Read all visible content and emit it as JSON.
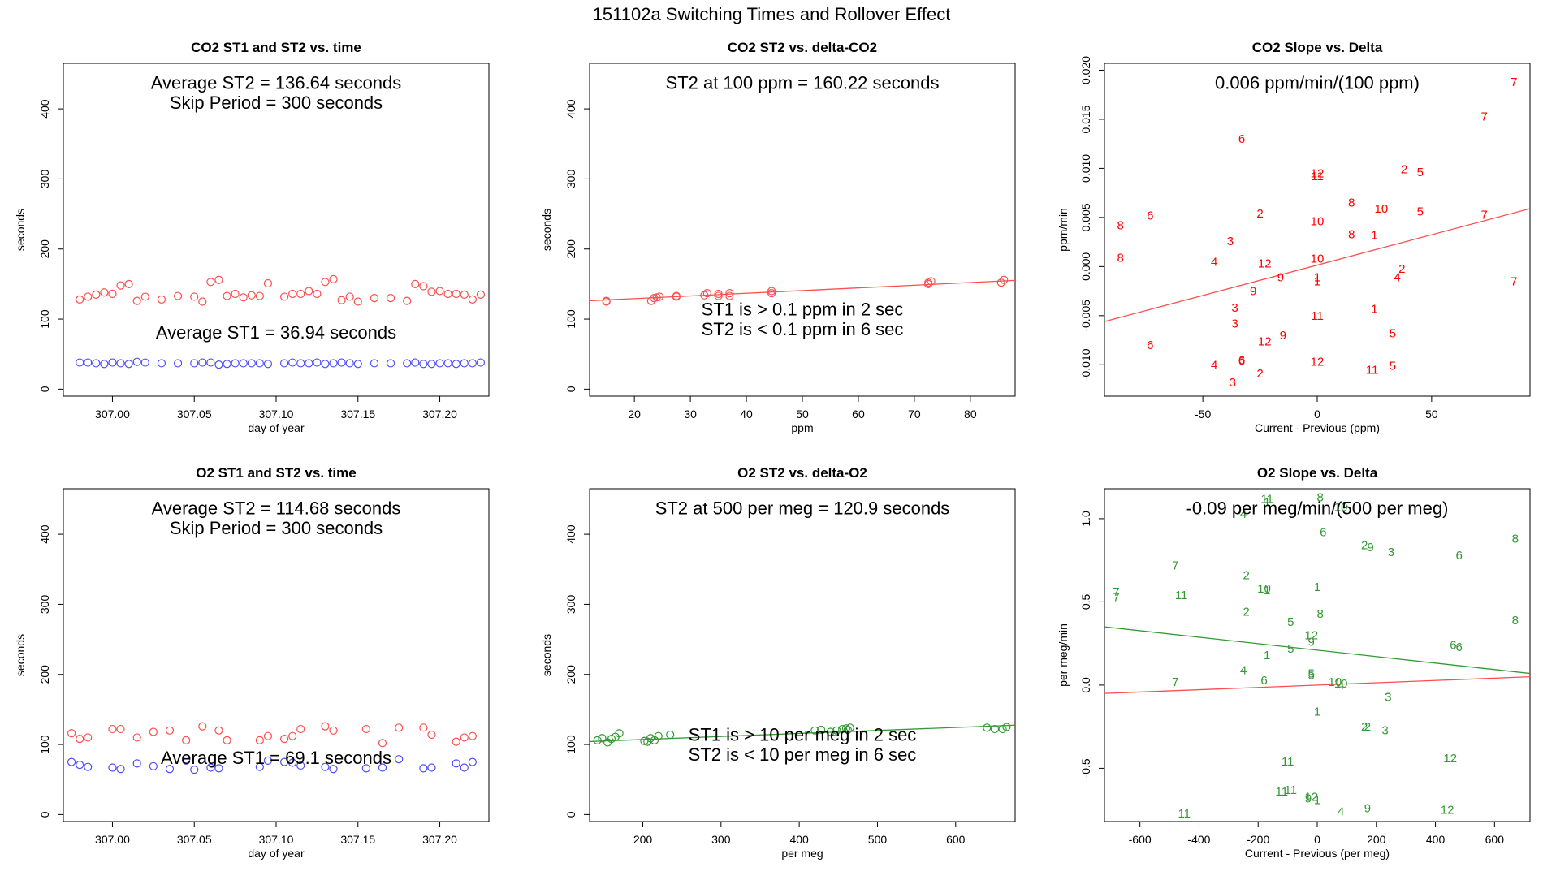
{
  "figure_title": "151102a   Switching Times and Rollover Effect",
  "chart_data": [
    {
      "type": "scatter",
      "title": "CO2 ST1 and ST2 vs. time",
      "xlabel": "day of year",
      "ylabel": "seconds",
      "xlim": [
        306.97,
        307.23
      ],
      "ylim": [
        -10,
        465
      ],
      "xticks": [
        307.0,
        307.05,
        307.1,
        307.15,
        307.2
      ],
      "xtick_labels": [
        "307.00",
        "307.05",
        "307.10",
        "307.15",
        "307.20"
      ],
      "yticks": [
        0,
        100,
        200,
        300,
        400
      ],
      "ytick_labels": [
        "0",
        "100",
        "200",
        "300",
        "400"
      ],
      "annotations": [
        "Average ST2 =  136.64  seconds",
        "Skip Period =  300  seconds",
        "Average ST1 =  36.94  seconds"
      ],
      "colors": {
        "st2": "#ff4d4d",
        "st1": "#4d4dff"
      },
      "series": [
        {
          "key": "st2",
          "x": [
            306.98,
            306.985,
            306.99,
            306.995,
            307.0,
            307.005,
            307.01,
            307.015,
            307.02,
            307.03,
            307.04,
            307.05,
            307.055,
            307.06,
            307.065,
            307.07,
            307.075,
            307.08,
            307.085,
            307.09,
            307.095,
            307.105,
            307.11,
            307.115,
            307.12,
            307.125,
            307.13,
            307.135,
            307.14,
            307.145,
            307.15,
            307.16,
            307.17,
            307.18,
            307.185,
            307.19,
            307.195,
            307.2,
            307.205,
            307.21,
            307.215,
            307.22,
            307.225
          ],
          "y": [
            128,
            132,
            135,
            138,
            136,
            148,
            150,
            126,
            132,
            128,
            133,
            132,
            125,
            153,
            156,
            133,
            136,
            131,
            134,
            133,
            151,
            132,
            136,
            136,
            140,
            136,
            153,
            157,
            127,
            132,
            125,
            130,
            130,
            126,
            150,
            147,
            139,
            140,
            136,
            136,
            135,
            128,
            135
          ]
        },
        {
          "key": "st1",
          "x": [
            306.98,
            306.985,
            306.99,
            306.995,
            307.0,
            307.005,
            307.01,
            307.015,
            307.02,
            307.03,
            307.04,
            307.05,
            307.055,
            307.06,
            307.065,
            307.07,
            307.075,
            307.08,
            307.085,
            307.09,
            307.095,
            307.105,
            307.11,
            307.115,
            307.12,
            307.125,
            307.13,
            307.135,
            307.14,
            307.145,
            307.15,
            307.16,
            307.17,
            307.18,
            307.185,
            307.19,
            307.195,
            307.2,
            307.205,
            307.21,
            307.215,
            307.22,
            307.225
          ],
          "y": [
            38,
            38,
            37,
            36,
            38,
            37,
            36,
            39,
            38,
            37,
            37,
            37,
            38,
            38,
            35,
            36,
            37,
            37,
            37,
            37,
            36,
            37,
            38,
            37,
            37,
            38,
            36,
            37,
            38,
            37,
            36,
            37,
            37,
            37,
            38,
            36,
            36,
            37,
            37,
            36,
            37,
            37,
            38
          ]
        }
      ]
    },
    {
      "type": "scatter",
      "title": "CO2 ST2 vs. delta-CO2",
      "xlabel": "ppm",
      "ylabel": "seconds",
      "xlim": [
        12,
        88
      ],
      "ylim": [
        -10,
        465
      ],
      "xticks": [
        20,
        30,
        40,
        50,
        60,
        70,
        80
      ],
      "xtick_labels": [
        "20",
        "30",
        "40",
        "50",
        "60",
        "70",
        "80"
      ],
      "yticks": [
        0,
        100,
        200,
        300,
        400
      ],
      "ytick_labels": [
        "0",
        "100",
        "200",
        "300",
        "400"
      ],
      "annotations": [
        "ST2 at 100 ppm =  160.22  seconds",
        "ST1 is > 0.1 ppm in 2 sec",
        "ST2 is < 0.1 ppm in 6 sec"
      ],
      "colors": {
        "points": "#ff4d4d",
        "line": "#ff4d4d"
      },
      "x": [
        15,
        15,
        23,
        23.5,
        24,
        24.5,
        27.5,
        27.5,
        32.5,
        33,
        35,
        35,
        37,
        37,
        44.5,
        44.5,
        72.5,
        72.5,
        73,
        85.5,
        86
      ],
      "y": [
        125,
        126,
        126,
        130,
        131,
        132,
        132,
        133,
        134,
        137,
        133,
        136,
        133,
        137,
        137,
        140,
        150,
        152,
        154,
        152,
        156
      ],
      "fit_line": {
        "x": [
          12,
          88
        ],
        "y": [
          126.2,
          155.2
        ]
      }
    },
    {
      "type": "scatter",
      "title": "CO2 Slope vs. Delta",
      "xlabel": "Current - Previous (ppm)",
      "ylabel": "ppm/min",
      "xlim": [
        -93,
        93
      ],
      "ylim": [
        -0.0132,
        0.0207
      ],
      "xticks": [
        -50,
        0,
        50
      ],
      "xtick_labels": [
        "-50",
        "0",
        "50"
      ],
      "yticks": [
        -0.01,
        -0.005,
        0.0,
        0.005,
        0.01,
        0.015,
        0.02
      ],
      "ytick_labels": [
        "-0.010",
        "-0.005",
        "0.000",
        "0.005",
        "0.010",
        "0.015",
        "0.020"
      ],
      "annotations": [
        "0.006  ppm/min/(100 ppm)"
      ],
      "colors": {
        "points": "#ff0000",
        "line": "#ff4d4d"
      },
      "point_labels": [
        "8",
        "8",
        "6",
        "6",
        "6",
        "6",
        "6",
        "3",
        "3",
        "3",
        "3",
        "4",
        "4",
        "12",
        "12",
        "9",
        "9",
        "9",
        "2",
        "2",
        "10",
        "10",
        "1",
        "1",
        "11",
        "11",
        "12",
        "8",
        "8",
        "1",
        "12",
        "10",
        "1",
        "11",
        "4",
        "2",
        "2",
        "5",
        "5",
        "5",
        "5",
        "7",
        "7",
        "7",
        "7"
      ],
      "x": [
        -86,
        -86,
        -73,
        -73,
        -33,
        -33,
        -33,
        -38,
        -36,
        -37,
        -36,
        -45,
        -45,
        -23,
        -23,
        -28,
        -16,
        -15,
        -25,
        -25,
        0,
        0,
        0,
        0,
        0,
        0,
        0,
        15,
        15,
        25,
        0,
        28,
        25,
        24,
        35,
        38,
        37,
        45,
        45,
        33,
        33,
        73,
        73,
        86,
        86
      ],
      "y": [
        0.0042,
        0.0009,
        0.0052,
        -0.008,
        0.013,
        -0.0096,
        -0.0095,
        0.0026,
        -0.0042,
        -0.0118,
        -0.0058,
        -0.01,
        0.0005,
        0.0003,
        -0.0076,
        -0.0025,
        -0.0011,
        -0.007,
        -0.0109,
        0.0054,
        0.0046,
        0.0008,
        -0.0011,
        -0.0015,
        -0.005,
        0.0092,
        0.0095,
        0.0065,
        0.0033,
        -0.0043,
        -0.0097,
        0.0059,
        0.0032,
        -0.0105,
        -0.0011,
        0.0099,
        -0.0002,
        0.0096,
        0.0056,
        -0.0068,
        -0.0101,
        0.0153,
        0.0053,
        0.0188,
        -0.0015
      ],
      "fit_line": {
        "x": [
          -93,
          93
        ],
        "y": [
          -0.0056,
          0.0059
        ]
      }
    },
    {
      "type": "scatter",
      "title": "O2 ST1 and ST2 vs. time",
      "xlabel": "day of year",
      "ylabel": "seconds",
      "xlim": [
        306.97,
        307.23
      ],
      "ylim": [
        -10,
        465
      ],
      "xticks": [
        307.0,
        307.05,
        307.1,
        307.15,
        307.2
      ],
      "xtick_labels": [
        "307.00",
        "307.05",
        "307.10",
        "307.15",
        "307.20"
      ],
      "yticks": [
        0,
        100,
        200,
        300,
        400
      ],
      "ytick_labels": [
        "0",
        "100",
        "200",
        "300",
        "400"
      ],
      "annotations": [
        "Average ST2 =  114.68  seconds",
        "Skip Period =  300  seconds",
        "Average ST1 =  69.1  seconds"
      ],
      "colors": {
        "st2": "#ff4d4d",
        "st1": "#4d4dff"
      },
      "series": [
        {
          "key": "st2",
          "x": [
            306.975,
            306.98,
            306.985,
            307.0,
            307.005,
            307.015,
            307.025,
            307.035,
            307.045,
            307.055,
            307.065,
            307.07,
            307.09,
            307.095,
            307.105,
            307.11,
            307.115,
            307.13,
            307.135,
            307.155,
            307.165,
            307.175,
            307.19,
            307.195,
            307.21,
            307.215,
            307.22
          ],
          "y": [
            116,
            108,
            110,
            122,
            122,
            110,
            118,
            120,
            106,
            126,
            120,
            106,
            106,
            112,
            108,
            112,
            122,
            126,
            120,
            122,
            102,
            124,
            124,
            114,
            104,
            110,
            112
          ]
        },
        {
          "key": "st1",
          "x": [
            306.975,
            306.98,
            306.985,
            307.0,
            307.005,
            307.015,
            307.025,
            307.035,
            307.045,
            307.05,
            307.06,
            307.065,
            307.09,
            307.095,
            307.105,
            307.11,
            307.115,
            307.13,
            307.135,
            307.155,
            307.165,
            307.175,
            307.19,
            307.195,
            307.21,
            307.215,
            307.22
          ],
          "y": [
            75,
            71,
            68,
            67,
            65,
            73,
            69,
            65,
            77,
            64,
            67,
            66,
            68,
            77,
            75,
            74,
            70,
            68,
            65,
            66,
            67,
            79,
            66,
            67,
            73,
            67,
            75
          ]
        }
      ]
    },
    {
      "type": "scatter",
      "title": "O2 ST2 vs. delta-O2",
      "xlabel": "per meg",
      "ylabel": "seconds",
      "xlim": [
        132,
        676
      ],
      "ylim": [
        -10,
        465
      ],
      "xticks": [
        200,
        300,
        400,
        500,
        600
      ],
      "xtick_labels": [
        "200",
        "300",
        "400",
        "500",
        "600"
      ],
      "yticks": [
        0,
        100,
        200,
        300,
        400
      ],
      "ytick_labels": [
        "0",
        "100",
        "200",
        "300",
        "400"
      ],
      "annotations": [
        "ST2 at 500 per meg =  120.9  seconds",
        "ST1 is > 10 per meg in 2 sec",
        "ST2 is < 10 per meg in 6 sec"
      ],
      "colors": {
        "points": "#339933",
        "line": "#339933"
      },
      "x": [
        142,
        148,
        155,
        160,
        165,
        170,
        202,
        206,
        210,
        215,
        220,
        235,
        420,
        428,
        440,
        448,
        455,
        460,
        462,
        465,
        640,
        650,
        660,
        665
      ],
      "y": [
        106,
        109,
        103,
        108,
        111,
        116,
        105,
        104,
        109,
        106,
        112,
        114,
        120,
        121,
        118,
        120,
        122,
        123,
        121,
        124,
        124,
        122,
        122,
        125
      ],
      "fit_line": {
        "x": [
          132,
          676
        ],
        "y": [
          104.2,
          127.6
        ]
      }
    },
    {
      "type": "scatter",
      "title": "O2 Slope vs. Delta",
      "xlabel": "Current - Previous (per meg)",
      "ylabel": "per meg/min",
      "xlim": [
        -720,
        720
      ],
      "ylim": [
        -0.82,
        1.18
      ],
      "xticks": [
        -600,
        -400,
        -200,
        0,
        200,
        400,
        600
      ],
      "xtick_labels": [
        "-600",
        "-400",
        "-200",
        "0",
        "200",
        "400",
        "600"
      ],
      "yticks": [
        -0.5,
        0.0,
        0.5,
        1.0
      ],
      "ytick_labels": [
        "-0.5",
        "0.0",
        "0.5",
        "1.0"
      ],
      "annotations": [
        "-0.09  per meg/min/(500 per meg)"
      ],
      "colors": {
        "points": "#339933",
        "lines": [
          "#339933",
          "#ff4d4d"
        ]
      },
      "point_labels": [
        "7",
        "7",
        "7",
        "7",
        "11",
        "11",
        "4",
        "4",
        "2",
        "2",
        "10",
        "1",
        "1",
        "11",
        "5",
        "5",
        "5",
        "11",
        "8",
        "11",
        "10",
        "6",
        "1",
        "12",
        "9",
        "8",
        "1",
        "12",
        "10",
        "5",
        "2",
        "9",
        "10",
        "4",
        "2",
        "3",
        "3",
        "3",
        "3",
        "9",
        "4",
        "6",
        "6",
        "6",
        "12",
        "12",
        "8",
        "8",
        "11",
        "1",
        "9",
        "2",
        "1",
        "6"
      ],
      "x": [
        -680,
        -680,
        -480,
        -480,
        -460,
        -450,
        -250,
        -250,
        -240,
        -240,
        -180,
        -170,
        -170,
        -170,
        -90,
        -90,
        -20,
        -100,
        10,
        -120,
        80,
        20,
        0,
        -20,
        -20,
        10,
        0,
        -20,
        60,
        -20,
        170,
        180,
        80,
        80,
        160,
        250,
        240,
        230,
        240,
        170,
        80,
        480,
        480,
        -180,
        450,
        440,
        670,
        670,
        -90,
        0,
        -30,
        160,
        -170,
        460
      ],
      "y": [
        0.56,
        0.53,
        0.72,
        0.02,
        0.54,
        -0.77,
        1.03,
        0.09,
        0.66,
        0.44,
        0.58,
        1.1,
        0.57,
        1.12,
        0.38,
        0.22,
        0.07,
        -0.46,
        1.13,
        -0.64,
        1.07,
        0.92,
        0.59,
        0.3,
        0.26,
        0.43,
        -0.16,
        -0.67,
        0.02,
        0.06,
        -0.25,
        0.83,
        0.01,
        -0.76,
        0.84,
        0.8,
        -0.07,
        -0.27,
        -0.07,
        -0.74,
        0.0,
        0.78,
        0.23,
        0.03,
        -0.44,
        -0.75,
        0.88,
        0.39,
        -0.63,
        -0.69,
        -0.68,
        -0.25,
        0.18,
        0.24
      ],
      "fit_lines": [
        {
          "x": [
            -720,
            720
          ],
          "y": [
            0.35,
            0.07
          ]
        },
        {
          "x": [
            -720,
            720
          ],
          "y": [
            -0.05,
            0.05
          ]
        }
      ]
    }
  ]
}
